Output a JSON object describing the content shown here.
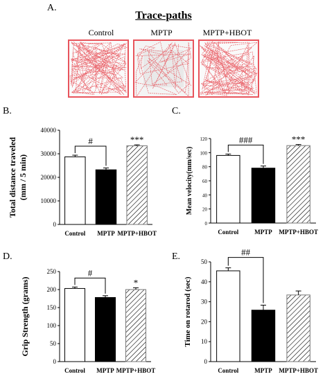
{
  "figure": {
    "panel_a_letter": "A.",
    "panel_a_title": "Trace-paths",
    "trace_labels": [
      "Control",
      "MPTP",
      "MPTP+HBOT"
    ],
    "trace_color": "#e8545c"
  },
  "chart_data": [
    {
      "panel": "B.",
      "type": "bar",
      "ylabel": "Total distance traveled (mm / 5 min)",
      "ylabel_lines": [
        "Total distance traveled",
        "(mm / 5 min)"
      ],
      "categories": [
        "Control",
        "MPTP",
        "MPTP+HBOT"
      ],
      "values": [
        28700,
        23200,
        33400
      ],
      "errors": [
        700,
        800,
        400
      ],
      "fills": [
        "white",
        "black",
        "hatch"
      ],
      "ylim": [
        0,
        40000
      ],
      "yticks": [
        0,
        10000,
        20000,
        30000,
        40000
      ],
      "significance": [
        {
          "type": "bracket",
          "from": 0,
          "to": 1,
          "text": "#"
        },
        {
          "type": "label",
          "bar": 2,
          "text": "***"
        }
      ]
    },
    {
      "panel": "C.",
      "type": "bar",
      "ylabel": "Mean velocity(mm/sec)",
      "ylabel_lines": [
        "Mean velocity(mm/sec)"
      ],
      "categories": [
        "Control",
        "MPTP",
        "MPTP+HBOT"
      ],
      "values": [
        96,
        78,
        110
      ],
      "errors": [
        2,
        3,
        1.5
      ],
      "fills": [
        "white",
        "black",
        "hatch"
      ],
      "ylim": [
        0,
        120
      ],
      "yticks": [
        0,
        20,
        40,
        60,
        80,
        100,
        120
      ],
      "significance": [
        {
          "type": "bracket",
          "from": 0,
          "to": 1,
          "text": "###"
        },
        {
          "type": "label",
          "bar": 2,
          "text": "***"
        }
      ]
    },
    {
      "panel": "D.",
      "type": "bar",
      "ylabel": "Grip Strength (grams)",
      "ylabel_lines": [
        "Grip Strength (grams)"
      ],
      "categories": [
        "Control",
        "MPTP",
        "MPTP+HBOT"
      ],
      "values": [
        203,
        178,
        200
      ],
      "errors": [
        4,
        5,
        5
      ],
      "fills": [
        "white",
        "black",
        "hatch"
      ],
      "ylim": [
        0,
        250
      ],
      "yticks": [
        0,
        50,
        100,
        150,
        200,
        250
      ],
      "significance": [
        {
          "type": "bracket",
          "from": 0,
          "to": 1,
          "text": "#"
        },
        {
          "type": "label",
          "bar": 2,
          "text": "*"
        }
      ]
    },
    {
      "panel": "E.",
      "type": "bar",
      "ylabel": "Time on rotarod (sec)",
      "ylabel_lines": [
        "Time on rotarod (sec)"
      ],
      "categories": [
        "Control",
        "MPTP",
        "MPTP+HBOT"
      ],
      "values": [
        45.5,
        25.8,
        33.4
      ],
      "errors": [
        1.5,
        2.5,
        2.0
      ],
      "fills": [
        "white",
        "black",
        "hatch"
      ],
      "ylim": [
        0,
        50
      ],
      "yticks": [
        0,
        10,
        20,
        30,
        40,
        50
      ],
      "significance": [
        {
          "type": "bracket",
          "from": 0,
          "to": 1,
          "text": "##"
        }
      ]
    }
  ]
}
